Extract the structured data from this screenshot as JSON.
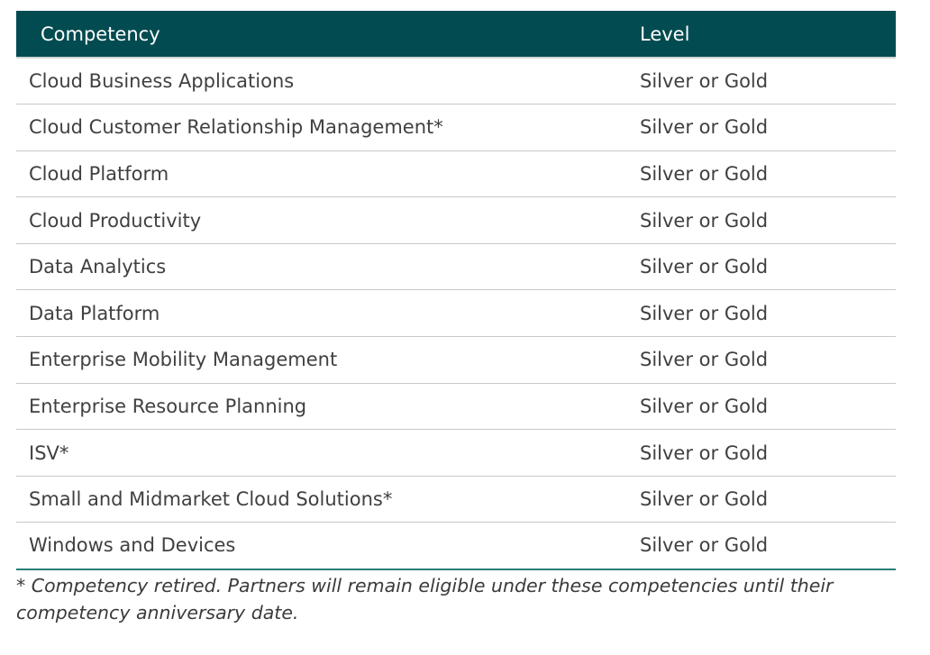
{
  "table": {
    "headers": {
      "competency": "Competency",
      "level": "Level"
    },
    "rows": [
      {
        "competency": "Cloud Business Applications",
        "level": "Silver or Gold"
      },
      {
        "competency": "Cloud Customer Relationship Management*",
        "level": "Silver or Gold"
      },
      {
        "competency": "Cloud Platform",
        "level": "Silver or Gold"
      },
      {
        "competency": "Cloud Productivity",
        "level": "Silver or Gold"
      },
      {
        "competency": "Data Analytics",
        "level": "Silver or Gold"
      },
      {
        "competency": "Data Platform",
        "level": "Silver or Gold"
      },
      {
        "competency": "Enterprise Mobility Management",
        "level": "Silver or Gold"
      },
      {
        "competency": "Enterprise Resource Planning",
        "level": "Silver or Gold"
      },
      {
        "competency": "ISV*",
        "level": "Silver or Gold"
      },
      {
        "competency": "Small and Midmarket Cloud Solutions*",
        "level": "Silver or Gold"
      },
      {
        "competency": "Windows and Devices",
        "level": "Silver or Gold"
      }
    ]
  },
  "footnote": "* Competency retired. Partners will remain eligible under these competencies until their competency anniversary date.",
  "colors": {
    "header_background": "#024b50",
    "header_text": "#ffffff",
    "row_divider": "#c8c8c8",
    "bottom_rule": "#2a7f78"
  }
}
